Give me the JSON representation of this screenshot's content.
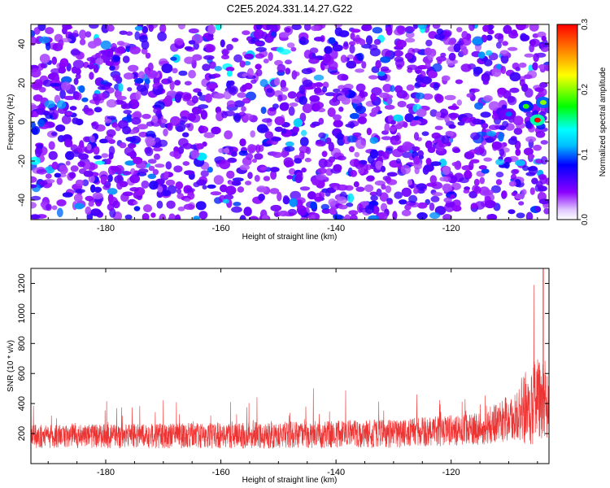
{
  "title": "C2E5.2024.331.14.27.G22",
  "chart_data": [
    {
      "type": "heatmap",
      "title": "",
      "xlabel": "Height of straight line (km)",
      "ylabel": "Frequency (Hz)",
      "xlim": [
        -193,
        -103
      ],
      "ylim": [
        -50,
        50
      ],
      "x_ticks": [
        -180,
        -160,
        -140,
        -120
      ],
      "y_ticks": [
        -40,
        -20,
        0,
        20,
        40
      ],
      "colorbar": {
        "label": "Normalized spectral amplitude",
        "range": [
          0,
          0.3
        ],
        "ticks": [
          0.0,
          0.1,
          0.2,
          0.3
        ]
      },
      "hotspots": [
        {
          "x": -105,
          "y": 1,
          "value": 0.3
        },
        {
          "x": -107,
          "y": 8,
          "value": 0.18
        },
        {
          "x": -104,
          "y": 10,
          "value": 0.2
        },
        {
          "x": -110,
          "y": 4,
          "value": 0.1
        }
      ]
    },
    {
      "type": "line",
      "title": "",
      "xlabel": "Height of straight line (km)",
      "ylabel": "SNR (10 * v/v)",
      "xlim": [
        -193,
        -103
      ],
      "ylim": [
        0,
        1300
      ],
      "x_ticks": [
        -180,
        -160,
        -140,
        -120
      ],
      "y_ticks": [
        200,
        400,
        600,
        800,
        1000,
        1200
      ],
      "color": "#ee3333",
      "profile": [
        {
          "x": -193,
          "baseline": 180,
          "spread": 130
        },
        {
          "x": -170,
          "baseline": 185,
          "spread": 140
        },
        {
          "x": -150,
          "baseline": 190,
          "spread": 150
        },
        {
          "x": -130,
          "baseline": 200,
          "spread": 160
        },
        {
          "x": -115,
          "baseline": 230,
          "spread": 180
        },
        {
          "x": -110,
          "baseline": 300,
          "spread": 260
        },
        {
          "x": -105,
          "baseline": 420,
          "spread": 500
        },
        {
          "x": -103,
          "baseline": 380,
          "spread": 350
        }
      ],
      "peak": {
        "x": -104,
        "y": 1300
      }
    }
  ]
}
